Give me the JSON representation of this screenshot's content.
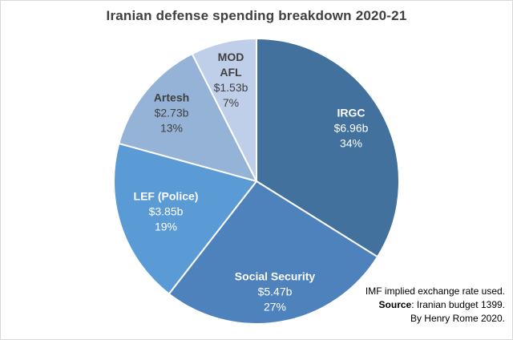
{
  "chart_data": {
    "type": "pie",
    "title": "Iranian defense spending breakdown 2020-21",
    "start_angle": "12 o'clock, clockwise",
    "slices": [
      {
        "name": "IRGC",
        "value_label": "$6.96b",
        "value": 6.96,
        "percent_label": "34%",
        "percent": 34,
        "color": "#41719c"
      },
      {
        "name": "Social Security",
        "value_label": "$5.47b",
        "value": 5.47,
        "percent_label": "27%",
        "percent": 27,
        "color": "#4e82bd"
      },
      {
        "name": "LEF (Police)",
        "value_label": "$3.85b",
        "value": 3.85,
        "percent_label": "19%",
        "percent": 19,
        "color": "#5b9bd5"
      },
      {
        "name": "Artesh",
        "value_label": "$2.73b",
        "value": 2.73,
        "percent_label": "13%",
        "percent": 13,
        "color": "#95b3d7"
      },
      {
        "name": "MOD AFL",
        "name_line1": "MOD",
        "name_line2": "AFL",
        "value_label": "$1.53b",
        "value": 1.53,
        "percent_label": "7%",
        "percent": 7,
        "color": "#bfcfe9"
      }
    ],
    "unit": "USD billions"
  },
  "notes": {
    "line1": "IMF implied  exchange rate used.",
    "source_label": "Source",
    "source_text": ": Iranian budget  1399.",
    "line3": "By Henry  Rome 2020."
  }
}
